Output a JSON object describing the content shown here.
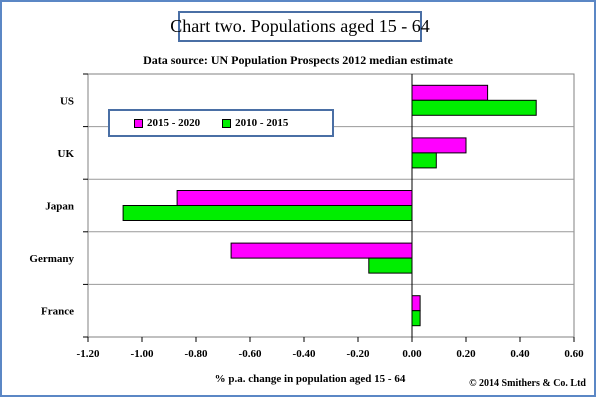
{
  "header": {
    "title": "Chart two. Populations aged 15 - 64",
    "subtitle": "Data source: UN Population Prospects 2012 median estimate"
  },
  "footer": {
    "copyright": "© 2014 Smithers & Co. Ltd"
  },
  "colors": {
    "series_2015_2020": "#ff00ff",
    "series_2010_2015": "#00ee00",
    "frame_border": "#5b87c5",
    "grid": "#999999"
  },
  "chart_data": {
    "type": "bar",
    "orientation": "horizontal",
    "title": "Chart two. Populations aged 15 - 64",
    "subtitle": "Data source: UN Population Prospects 2012 median estimate",
    "xlabel": "% p.a. change in population aged 15 - 64",
    "ylabel": "",
    "categories": [
      "US",
      "UK",
      "Japan",
      "Germany",
      "France"
    ],
    "series": [
      {
        "name": "2015 - 2020",
        "color": "#ff00ff",
        "values": [
          0.28,
          0.2,
          -0.87,
          -0.67,
          0.03
        ]
      },
      {
        "name": "2010 - 2015",
        "color": "#00ee00",
        "values": [
          0.46,
          0.09,
          -1.07,
          -0.16,
          0.03
        ]
      }
    ],
    "xlim": [
      -1.2,
      0.6
    ],
    "xticks": [
      "-1.20",
      "-1.00",
      "-0.80",
      "-0.60",
      "-0.40",
      "-0.20",
      "0.00",
      "0.20",
      "0.40",
      "0.60"
    ],
    "grid": "horizontal category separators",
    "legend_placement": "top-left inside plot"
  }
}
